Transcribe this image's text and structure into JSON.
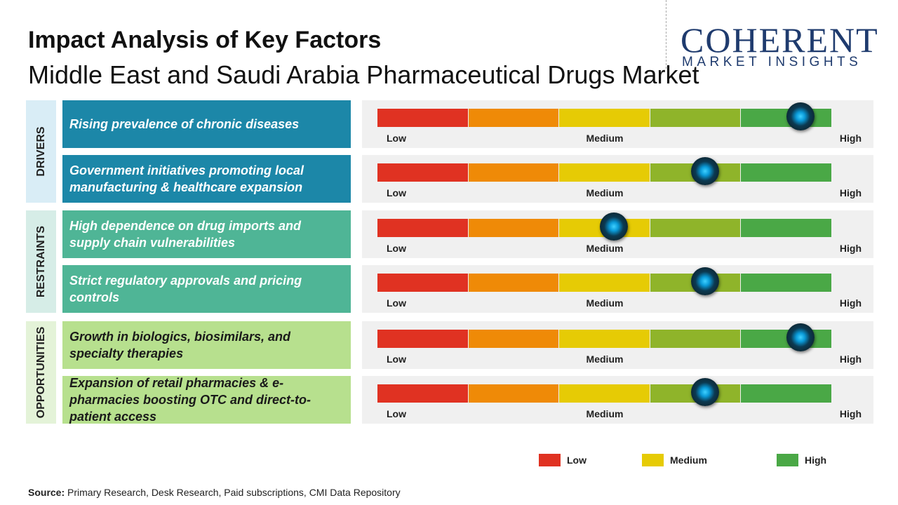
{
  "header": {
    "title": "Impact Analysis of Key Factors",
    "subtitle": "Middle East and Saudi Arabia Pharmaceutical Drugs Market"
  },
  "logo": {
    "name": "COHERENT",
    "tagline": "MARKET INSIGHTS"
  },
  "impact_range": [
    0,
    100
  ],
  "scale_labels": [
    "Low",
    "Medium",
    "High"
  ],
  "scale_colors": [
    "#e03222",
    "#ef8a07",
    "#e6cb05",
    "#8fb42a",
    "#4aa846"
  ],
  "groups": [
    {
      "label": "DRIVERS",
      "color": "#1c87a8",
      "band": "#d9edf6",
      "text_color": "#ffffff",
      "factors": [
        {
          "text": "Rising prevalence of chronic diseases",
          "impact": 93
        },
        {
          "text": "Government initiatives promoting local manufacturing & healthcare expansion",
          "impact": 72
        }
      ]
    },
    {
      "label": "RESTRAINTS",
      "color": "#4fb596",
      "band": "#d6ede7",
      "text_color": "#ffffff",
      "factors": [
        {
          "text": "High dependence on drug imports and supply chain vulnerabilities",
          "impact": 52
        },
        {
          "text": "Strict regulatory approvals and pricing controls",
          "impact": 72
        }
      ]
    },
    {
      "label": "OPPORTUNITIES",
      "color": "#b7e08e",
      "band": "#e4f3d8",
      "text_color": "#1a1a1a",
      "factors": [
        {
          "text": "Growth in biologics, biosimilars, and specialty therapies",
          "impact": 93
        },
        {
          "text": "Expansion of retail pharmacies & e-pharmacies boosting OTC and direct-to-patient access",
          "impact": 72
        }
      ]
    }
  ],
  "legend": [
    {
      "label": "Low",
      "color": "#e03222"
    },
    {
      "label": "Medium",
      "color": "#e6cb05"
    },
    {
      "label": "High",
      "color": "#4aa846"
    }
  ],
  "source": {
    "label": "Source:",
    "text": "Primary Research, Desk Research, Paid subscriptions, CMI Data Repository"
  }
}
